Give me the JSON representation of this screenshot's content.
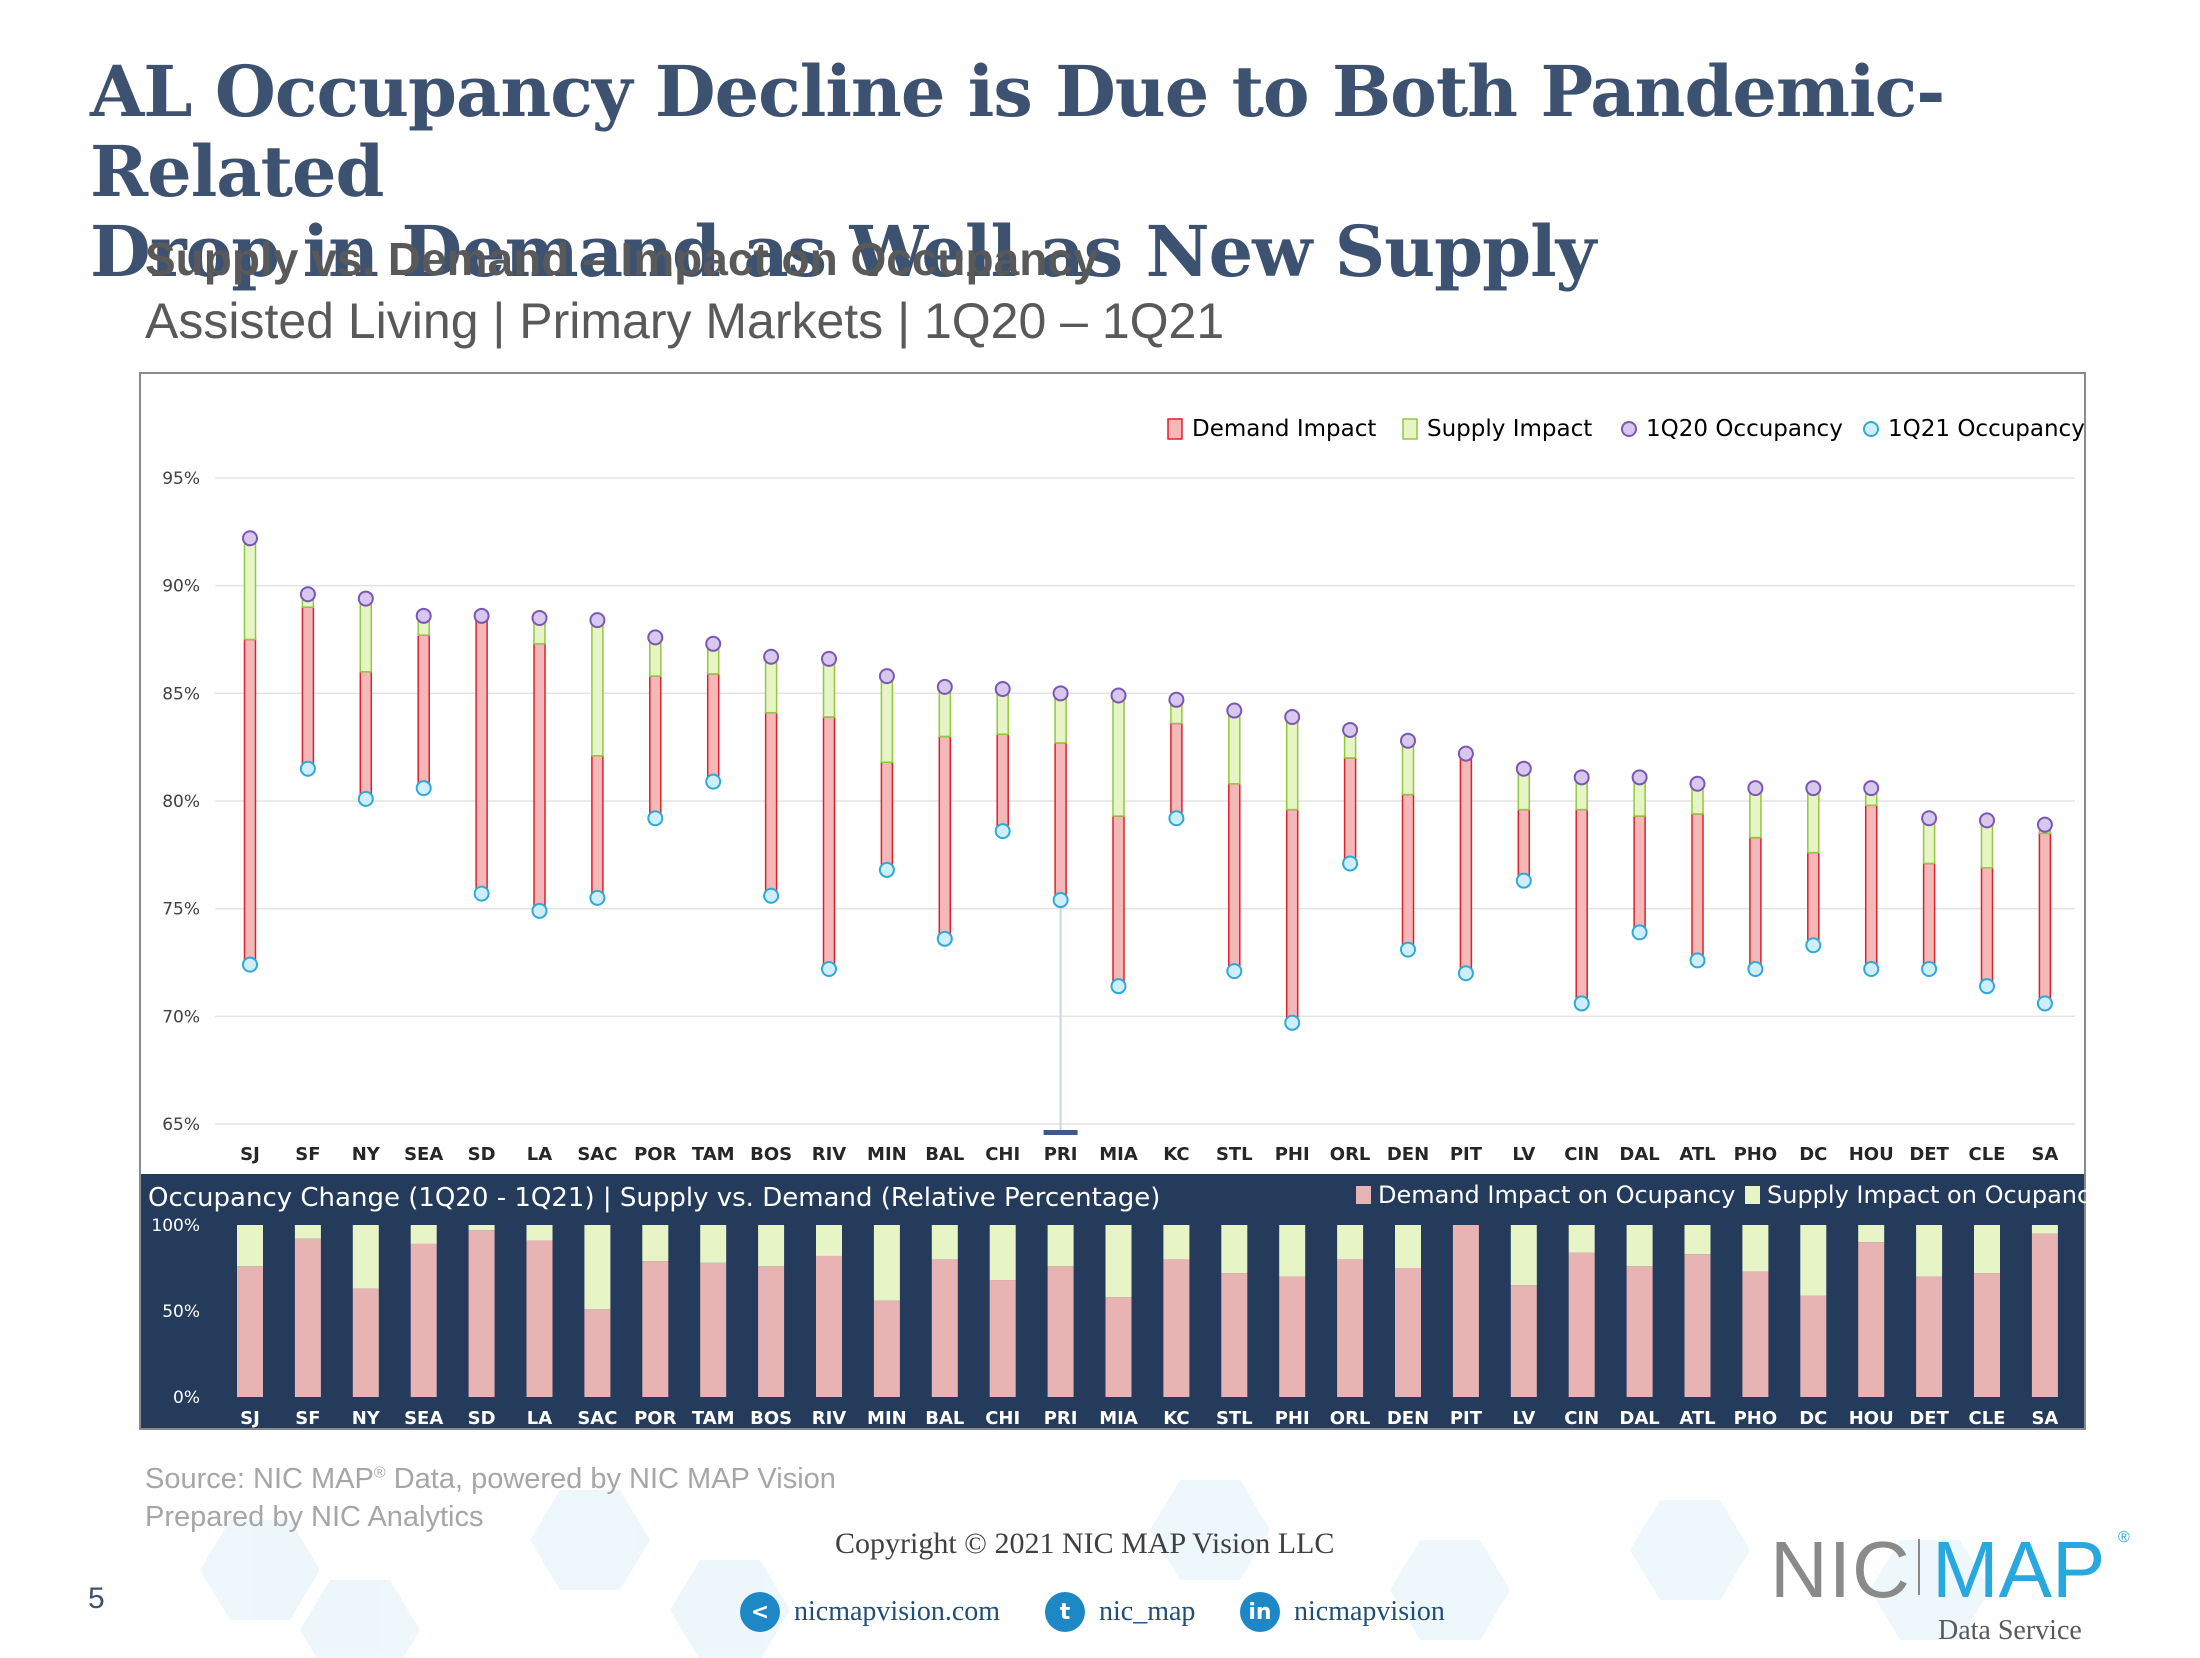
{
  "title_line1": "AL Occupancy Decline is Due to Both Pandemic-Related",
  "title_line2": "Drop in Demand as Well as New Supply",
  "subtitle1": "Supply vs. Demand – Impact on Occupancy",
  "subtitle2": "Assisted Living | Primary Markets | 1Q20 – 1Q21",
  "colors": {
    "title": "#3d5170",
    "demand_fill": "#f4b8b8",
    "demand_stroke": "#e0202a",
    "supply_fill": "#e6f4c6",
    "supply_stroke": "#92c83e",
    "q20_fill": "#d9c8ee",
    "q20_stroke": "#7b57b5",
    "q21_fill": "#cdeefa",
    "q21_stroke": "#2fa9d6",
    "panel_bg": "#243b5c",
    "pct_demand": "#e8b3b3",
    "pct_supply": "#e6f4c6",
    "accent": "#29a8e0"
  },
  "chart_data": [
    {
      "type": "floating-bar",
      "title": "Supply vs. Demand – Impact on Occupancy",
      "y_unit": "%",
      "ylim": [
        65,
        95
      ],
      "yticks": [
        65,
        70,
        75,
        80,
        85,
        90,
        95
      ],
      "ytick_labels": [
        "65%",
        "70%",
        "75%",
        "80%",
        "85%",
        "90%",
        "95%"
      ],
      "grid": true,
      "legend_position": "top-right",
      "categories": [
        "SJ",
        "SF",
        "NY",
        "SEA",
        "SD",
        "LA",
        "SAC",
        "POR",
        "TAM",
        "BOS",
        "RIV",
        "MIN",
        "BAL",
        "CHI",
        "PRI",
        "MIA",
        "KC",
        "STL",
        "PHI",
        "ORL",
        "DEN",
        "PIT",
        "LV",
        "CIN",
        "DAL",
        "ATL",
        "PHO",
        "DC",
        "HOU",
        "DET",
        "CLE",
        "SA"
      ],
      "series": [
        {
          "name": "1Q20 Occupancy",
          "values": [
            92.2,
            89.6,
            89.4,
            88.6,
            88.6,
            88.5,
            88.4,
            87.6,
            87.3,
            86.7,
            86.6,
            85.8,
            85.3,
            85.2,
            85.0,
            84.9,
            84.7,
            84.2,
            83.9,
            83.3,
            82.8,
            82.2,
            81.5,
            81.1,
            81.1,
            80.8,
            80.6,
            80.6,
            80.6,
            79.2,
            79.1,
            78.9
          ]
        },
        {
          "name": "1Q21 Occupancy",
          "values": [
            72.4,
            81.5,
            80.1,
            80.6,
            75.7,
            74.9,
            75.5,
            79.2,
            80.9,
            75.6,
            72.2,
            76.8,
            73.6,
            78.6,
            75.4,
            71.4,
            79.2,
            72.1,
            69.7,
            77.1,
            73.1,
            72.0,
            76.3,
            70.6,
            73.9,
            72.6,
            72.2,
            73.3,
            72.2,
            72.2,
            71.4,
            70.6
          ]
        },
        {
          "name": "Supply Impact",
          "values": [
            4.7,
            0.6,
            3.4,
            0.9,
            0.2,
            1.2,
            6.3,
            1.8,
            1.4,
            2.6,
            2.7,
            4.0,
            2.3,
            2.1,
            2.3,
            5.6,
            1.1,
            3.4,
            4.3,
            1.3,
            2.5,
            0.0,
            1.9,
            1.5,
            1.8,
            1.4,
            2.3,
            3.0,
            0.8,
            2.1,
            2.2,
            0.4
          ]
        },
        {
          "name": "Demand Impact",
          "values": [
            15.1,
            7.5,
            5.9,
            7.1,
            12.7,
            12.4,
            6.6,
            6.6,
            5.0,
            8.5,
            11.7,
            5.0,
            9.4,
            4.5,
            7.3,
            7.9,
            4.4,
            8.7,
            9.9,
            4.9,
            7.2,
            10.2,
            3.3,
            9.0,
            5.4,
            6.8,
            6.1,
            4.3,
            7.6,
            4.9,
            5.5,
            7.9
          ]
        }
      ],
      "legend": [
        "Demand Impact",
        "Supply Impact",
        "1Q20 Occupancy",
        "1Q21 Occupancy"
      ]
    },
    {
      "type": "stacked-bar-100",
      "title": "Occupancy Change (1Q20 - 1Q21)  | Supply vs. Demand (Relative Percentage)",
      "ylim": [
        0,
        100
      ],
      "yticks": [
        0,
        50,
        100
      ],
      "ytick_labels": [
        "0%",
        "50%",
        "100%"
      ],
      "legend_position": "top-right",
      "categories": [
        "SJ",
        "SF",
        "NY",
        "SEA",
        "SD",
        "LA",
        "SAC",
        "POR",
        "TAM",
        "BOS",
        "RIV",
        "MIN",
        "BAL",
        "CHI",
        "PRI",
        "MIA",
        "KC",
        "STL",
        "PHI",
        "ORL",
        "DEN",
        "PIT",
        "LV",
        "CIN",
        "DAL",
        "ATL",
        "PHO",
        "DC",
        "HOU",
        "DET",
        "CLE",
        "SA"
      ],
      "series": [
        {
          "name": "Demand Impact on Ocupancy",
          "values": [
            76,
            92,
            63,
            89,
            97,
            91,
            51,
            79,
            78,
            76,
            82,
            56,
            80,
            68,
            76,
            58,
            80,
            72,
            70,
            80,
            75,
            100,
            65,
            84,
            76,
            83,
            73,
            59,
            90,
            70,
            72,
            95
          ]
        },
        {
          "name": "Supply Impact on Ocupancy",
          "values": [
            24,
            8,
            37,
            11,
            3,
            9,
            49,
            21,
            22,
            24,
            18,
            44,
            20,
            32,
            24,
            42,
            20,
            28,
            30,
            20,
            25,
            0,
            35,
            16,
            24,
            17,
            27,
            41,
            10,
            30,
            28,
            5
          ]
        }
      ],
      "legend": [
        "Demand Impact on Ocupancy",
        "Supply Impact on Ocupancy"
      ]
    }
  ],
  "source_line1": "Source: NIC MAP",
  "source_reg": "®",
  "source_line1_rest": " Data, powered by NIC MAP Vision",
  "source_line2": "Prepared by NIC Analytics",
  "copyright": "Copyright © 2021 NIC MAP Vision LLC",
  "page_number": "5",
  "social": [
    {
      "icon": "share-icon",
      "glyph": "<",
      "label": "nicmapvision.com"
    },
    {
      "icon": "twitter-icon",
      "glyph": "t",
      "label": "nic_map"
    },
    {
      "icon": "linkedin-icon",
      "glyph": "in",
      "label": "nicmapvision"
    }
  ],
  "logo": {
    "nic": "NIC",
    "map": "MAP",
    "reg": "®",
    "tagline": "Data Service"
  }
}
